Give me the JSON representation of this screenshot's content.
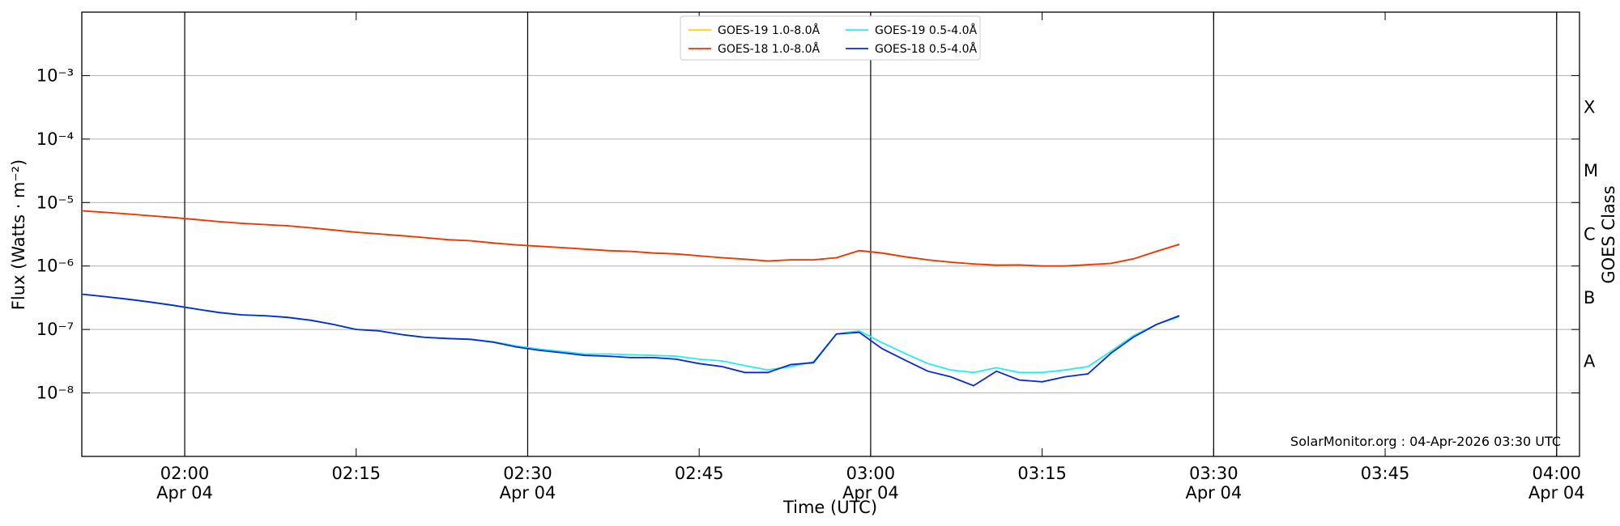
{
  "chart_data": {
    "type": "line",
    "ylog": true,
    "y_label": "Flux (Watts · m⁻²)",
    "x_label": "Time (UTC)",
    "y2_label": "GOES Class",
    "annotation": "SolarMonitor.org : 04-Apr-2026 03:30 UTC",
    "xlim": [
      "01:51",
      "04:02"
    ],
    "xticks": [
      {
        "value": "02:00",
        "label": "02:00\nApr 04"
      },
      "02:15",
      {
        "value": "02:30",
        "label": "02:30\nApr 04"
      },
      "02:45",
      {
        "value": "03:00",
        "label": "03:00\nApr 04"
      },
      "03:15",
      {
        "value": "03:30",
        "label": "03:30\nApr 04"
      },
      "03:45",
      {
        "value": "04:00",
        "label": "04:00\nApr 04"
      }
    ],
    "ylim": [
      1e-09,
      0.01
    ],
    "yticks": [
      {
        "value": 1e-08,
        "label": "10⁻⁸"
      },
      {
        "value": 1e-07,
        "label": "10⁻⁷"
      },
      {
        "value": 1e-06,
        "label": "10⁻⁶"
      },
      {
        "value": 1e-05,
        "label": "10⁻⁵"
      },
      {
        "value": 0.0001,
        "label": "10⁻⁴"
      },
      {
        "value": 0.001,
        "label": "10⁻³"
      }
    ],
    "goes_classes": [
      {
        "value": 1e-08,
        "label": "A"
      },
      {
        "value": 1e-07,
        "label": "B"
      },
      {
        "value": 1e-06,
        "label": "C"
      },
      {
        "value": 1e-05,
        "label": "M"
      },
      {
        "value": 0.0001,
        "label": "X"
      }
    ],
    "grid": true,
    "x": [
      "01:51",
      "01:53",
      "01:55",
      "01:57",
      "01:59",
      "02:01",
      "02:03",
      "02:05",
      "02:07",
      "02:09",
      "02:11",
      "02:13",
      "02:15",
      "02:17",
      "02:19",
      "02:21",
      "02:23",
      "02:25",
      "02:27",
      "02:29",
      "02:31",
      "02:33",
      "02:35",
      "02:37",
      "02:39",
      "02:41",
      "02:43",
      "02:45",
      "02:47",
      "02:49",
      "02:51",
      "02:53",
      "02:55",
      "02:57",
      "02:59",
      "03:01",
      "03:03",
      "03:05",
      "03:07",
      "03:09",
      "03:11",
      "03:13",
      "03:15",
      "03:17",
      "03:19",
      "03:21",
      "03:23",
      "03:25",
      "03:27"
    ],
    "series": [
      {
        "name": "GOES-19 1.0-8.0Å",
        "color": "#ffd700",
        "values": [
          7.4e-06,
          7e-06,
          6.6e-06,
          6.2e-06,
          5.8e-06,
          5.4e-06,
          5e-06,
          4.7e-06,
          4.5e-06,
          4.3e-06,
          4e-06,
          3.7e-06,
          3.4e-06,
          3.2e-06,
          3e-06,
          2.8e-06,
          2.6e-06,
          2.5e-06,
          2.3e-06,
          2.15e-06,
          2.05e-06,
          1.95e-06,
          1.85e-06,
          1.75e-06,
          1.7e-06,
          1.6e-06,
          1.55e-06,
          1.45e-06,
          1.35e-06,
          1.28e-06,
          1.2e-06,
          1.25e-06,
          1.25e-06,
          1.35e-06,
          1.75e-06,
          1.6e-06,
          1.4e-06,
          1.25e-06,
          1.15e-06,
          1.08e-06,
          1.03e-06,
          1.04e-06,
          1e-06,
          1e-06,
          1.05e-06,
          1.1e-06,
          1.3e-06,
          1.7e-06,
          2.2e-06
        ]
      },
      {
        "name": "GOES-18 1.0-8.0Å",
        "color": "#f03208",
        "values": [
          7.4e-06,
          7e-06,
          6.6e-06,
          6.2e-06,
          5.8e-06,
          5.4e-06,
          5e-06,
          4.7e-06,
          4.5e-06,
          4.3e-06,
          4e-06,
          3.7e-06,
          3.4e-06,
          3.2e-06,
          3e-06,
          2.8e-06,
          2.6e-06,
          2.5e-06,
          2.3e-06,
          2.15e-06,
          2.05e-06,
          1.95e-06,
          1.85e-06,
          1.75e-06,
          1.7e-06,
          1.6e-06,
          1.55e-06,
          1.45e-06,
          1.35e-06,
          1.28e-06,
          1.2e-06,
          1.25e-06,
          1.25e-06,
          1.35e-06,
          1.75e-06,
          1.6e-06,
          1.4e-06,
          1.25e-06,
          1.15e-06,
          1.08e-06,
          1.03e-06,
          1.04e-06,
          1e-06,
          1e-06,
          1.05e-06,
          1.1e-06,
          1.3e-06,
          1.7e-06,
          2.2e-06
        ]
      },
      {
        "name": "GOES-19 0.5-4.0Å",
        "color": "#22eeee",
        "values": [
          3.6e-07,
          3.3e-07,
          3e-07,
          2.7e-07,
          2.4e-07,
          2.1e-07,
          1.85e-07,
          1.7e-07,
          1.65e-07,
          1.55e-07,
          1.4e-07,
          1.2e-07,
          1e-07,
          9.5e-08,
          8.3e-08,
          7.5e-08,
          7.2e-08,
          7e-08,
          6.4e-08,
          5.5e-08,
          4.9e-08,
          4.5e-08,
          4.1e-08,
          4.1e-08,
          4e-08,
          3.9e-08,
          3.8e-08,
          3.4e-08,
          3.2e-08,
          2.7e-08,
          2.3e-08,
          2.6e-08,
          3.1e-08,
          8.5e-08,
          9.5e-08,
          6.2e-08,
          4.2e-08,
          2.9e-08,
          2.3e-08,
          2.1e-08,
          2.5e-08,
          2.1e-08,
          2.1e-08,
          2.3e-08,
          2.6e-08,
          4.5e-08,
          8e-08,
          1.2e-07,
          1.6e-07
        ]
      },
      {
        "name": "GOES-18 0.5-4.0Å",
        "color": "#0a28d8",
        "values": [
          3.6e-07,
          3.3e-07,
          3e-07,
          2.7e-07,
          2.4e-07,
          2.1e-07,
          1.85e-07,
          1.7e-07,
          1.65e-07,
          1.55e-07,
          1.4e-07,
          1.2e-07,
          1e-07,
          9.5e-08,
          8.3e-08,
          7.5e-08,
          7.2e-08,
          7e-08,
          6.3e-08,
          5.3e-08,
          4.7e-08,
          4.3e-08,
          3.9e-08,
          3.8e-08,
          3.6e-08,
          3.6e-08,
          3.4e-08,
          2.9e-08,
          2.6e-08,
          2.1e-08,
          2.1e-08,
          2.8e-08,
          3e-08,
          8.5e-08,
          9e-08,
          5e-08,
          3.3e-08,
          2.2e-08,
          1.8e-08,
          1.3e-08,
          2.2e-08,
          1.6e-08,
          1.5e-08,
          1.8e-08,
          2e-08,
          4.2e-08,
          7.6e-08,
          1.2e-07,
          1.65e-07
        ]
      }
    ]
  }
}
